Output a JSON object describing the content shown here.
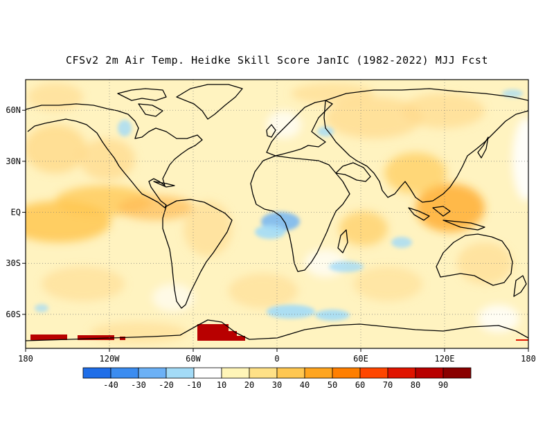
{
  "title": "CFSv2 2m Air Temp. Heidke Skill Score JanIC (1982-2022) MJJ Fcst",
  "map": {
    "lon_labels": [
      "180",
      "120W",
      "60W",
      "0",
      "60E",
      "120E",
      "180"
    ],
    "lon_values": [
      -180,
      -120,
      -60,
      0,
      60,
      120,
      180
    ],
    "lat_labels": [
      "60N",
      "30N",
      "EQ",
      "30S",
      "60S"
    ],
    "lat_values": [
      60,
      30,
      0,
      -30,
      -60
    ],
    "lat_range": [
      -80,
      78
    ],
    "lon_range": [
      -180,
      180
    ],
    "grid": true
  },
  "colorbar": {
    "labels": [
      "-40",
      "-30",
      "-20",
      "-10",
      "10",
      "20",
      "30",
      "40",
      "50",
      "60",
      "70",
      "80",
      "90"
    ],
    "colors": [
      "#1f6ee8",
      "#3b8cf0",
      "#6cb1f6",
      "#a3dbf7",
      "#ffffff",
      "#fff5b8",
      "#ffe187",
      "#ffc751",
      "#ffa51f",
      "#ff7f00",
      "#ff4600",
      "#e01400",
      "#b80000",
      "#8a0000"
    ]
  },
  "field_colors": {
    "pale_yellow": "#fff3c0",
    "light_orange": "#ffd98a",
    "orange": "#ffba55",
    "deep_orange": "#ff9a2a",
    "light_blue": "#a3dbf7",
    "blue": "#6cb1f6",
    "dark_red": "#b80000"
  }
}
